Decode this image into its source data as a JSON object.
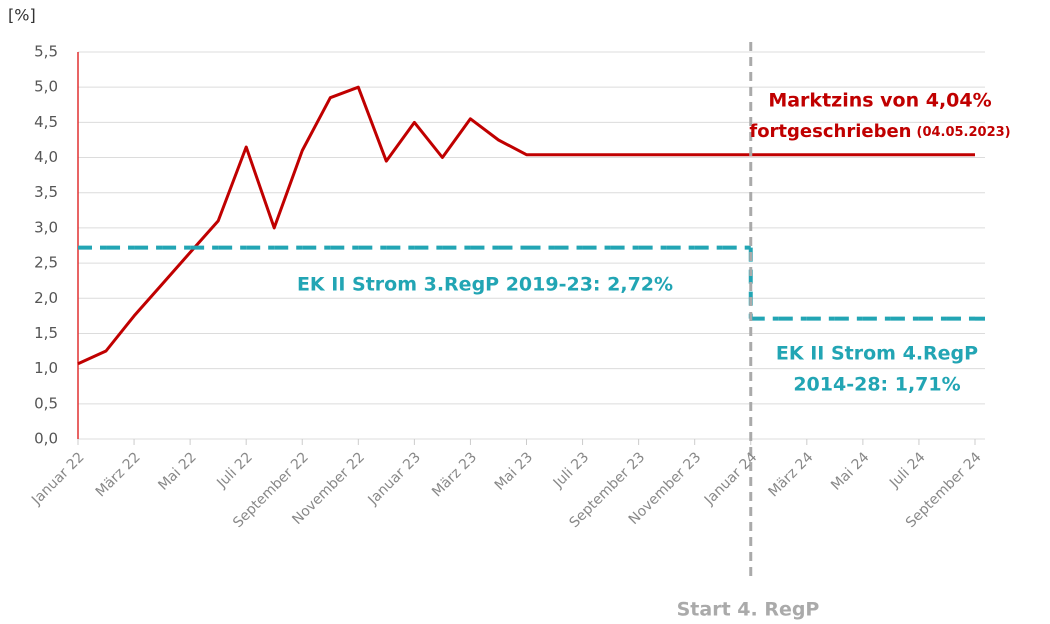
{
  "chart_data": {
    "type": "line",
    "ylabel": "[%]",
    "categories": [
      "Januar 22",
      null,
      "März 22",
      null,
      "Mai 22",
      null,
      "Juli 22",
      null,
      "September 22",
      null,
      "November 22",
      null,
      "Januar 23",
      null,
      "März 23",
      null,
      "Mai 23",
      null,
      "Juli 23",
      null,
      "September 23",
      null,
      "November 23",
      null,
      "Januar 24",
      null,
      "März 24",
      null,
      "Mai 24",
      null,
      "Juli 24",
      null,
      "September 24"
    ],
    "series": [
      {
        "color": "#c00000",
        "style": "solid",
        "values": [
          1.07,
          1.25,
          1.75,
          2.2,
          2.65,
          3.1,
          4.15,
          3.0,
          4.1,
          4.85,
          5.0,
          3.95,
          4.5,
          4.0,
          4.55,
          4.25,
          4.04,
          4.04,
          4.04,
          4.04,
          4.04,
          4.04,
          4.04,
          4.04,
          4.04,
          4.04,
          4.04,
          4.04,
          4.04,
          4.04,
          4.04,
          4.04,
          4.04
        ]
      },
      {
        "color": "#22a5b4",
        "style": "dashed-step",
        "values": [
          2.72,
          2.72,
          2.72,
          2.72,
          2.72,
          2.72,
          2.72,
          2.72,
          2.72,
          2.72,
          2.72,
          2.72,
          2.72,
          2.72,
          2.72,
          2.72,
          2.72,
          2.72,
          2.72,
          2.72,
          2.72,
          2.72,
          2.72,
          2.72,
          1.71,
          1.71,
          1.71,
          1.71,
          1.71,
          1.71,
          1.71,
          1.71,
          1.71
        ]
      }
    ],
    "ylim": [
      0,
      5.5
    ],
    "yticks": [
      {
        "value": 0,
        "label": "0,0"
      },
      {
        "value": 0.5,
        "label": "0,5"
      },
      {
        "value": 1,
        "label": "1,0"
      },
      {
        "value": 1.5,
        "label": "1,5"
      },
      {
        "value": 2,
        "label": "2,0"
      },
      {
        "value": 2.5,
        "label": "2,5"
      },
      {
        "value": 3,
        "label": "3,0"
      },
      {
        "value": 3.5,
        "label": "3,5"
      },
      {
        "value": 4,
        "label": "4,0"
      },
      {
        "value": 4.5,
        "label": "4,5"
      },
      {
        "value": 5,
        "label": "5,0"
      },
      {
        "value": 5.5,
        "label": "5,5"
      }
    ],
    "grid": true,
    "annotations": {
      "market": "Marktzins von 4,04%",
      "market_note": "fortgeschrieben",
      "market_date": "(04.05.2023)",
      "regp3": "EK II Strom 3.RegP 2019-23: 2,72%",
      "regp4_line1": "EK II Strom 4.RegP",
      "regp4_line2": "2014-28: 1,71%",
      "start": "Start 4. RegP"
    }
  }
}
